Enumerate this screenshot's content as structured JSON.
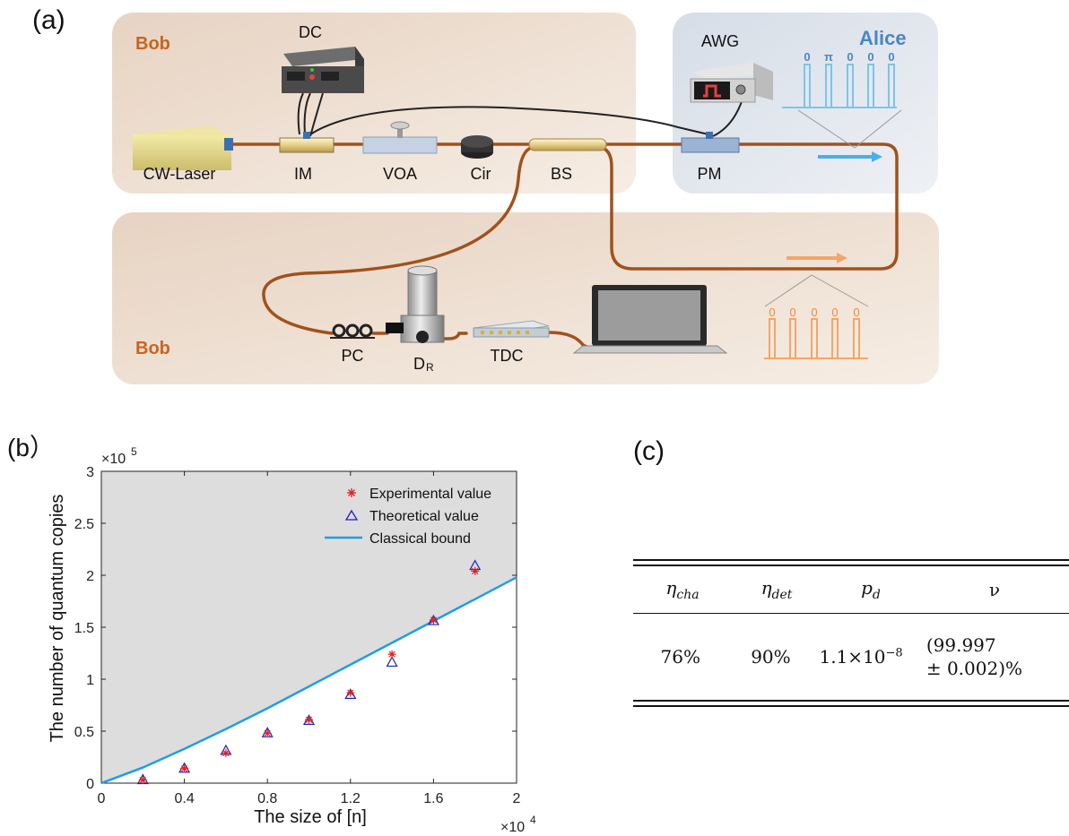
{
  "panels": {
    "a": "(a)",
    "b": "(b）",
    "c": "(c)"
  },
  "setup": {
    "regions": {
      "bob_top": "Bob",
      "bob_bottom": "Bob",
      "alice": "Alice"
    },
    "devices": {
      "dc": "DC",
      "awg": "AWG",
      "cw_laser": "CW-Laser",
      "im": "IM",
      "voa": "VOA",
      "cir": "Cir",
      "bs": "BS",
      "pm": "PM",
      "pc": "PC",
      "dr_main": "D",
      "dr_sub": "R",
      "tdc": "TDC"
    },
    "alice_pulse_labels": [
      "0",
      "π",
      "0",
      "0",
      "0"
    ],
    "bob_pulse_labels": [
      "0",
      "0",
      "0",
      "0",
      "0"
    ],
    "colors": {
      "bob_region": "#f0e2d5",
      "alice_region": "#e2e6ec",
      "bob_text": "#c8651f",
      "alice_text": "#4a86c4",
      "fiber": "#a0521c",
      "alice_pulse": "#7cc4ea",
      "bob_pulse": "#f3a66a"
    }
  },
  "chart_data": {
    "type": "scatter",
    "xlabel": "The size of [n]",
    "ylabel": "The number of quantum copies",
    "x_multiplier": "×10",
    "x_multiplier_exp": "4",
    "y_multiplier": "×10",
    "y_multiplier_exp": "5",
    "xlim": [
      0,
      2
    ],
    "ylim": [
      0,
      3
    ],
    "x_ticks": [
      "0",
      "0.4",
      "0.8",
      "1.2",
      "1.6",
      "2"
    ],
    "y_ticks": [
      "0",
      "0.5",
      "1",
      "1.5",
      "2",
      "2.5",
      "3"
    ],
    "legend_position": "top-right",
    "series": [
      {
        "name": "Experimental value",
        "marker": "asterisk",
        "color": "#e02020",
        "x": [
          0.2,
          0.4,
          0.6,
          0.8,
          1.0,
          1.2,
          1.4,
          1.6,
          1.8
        ],
        "y": [
          0.03,
          0.14,
          0.29,
          0.48,
          0.61,
          0.87,
          1.24,
          1.57,
          2.04
        ]
      },
      {
        "name": "Theoretical value",
        "marker": "triangle",
        "color": "#2020c0",
        "x": [
          0.2,
          0.4,
          0.6,
          0.8,
          1.0,
          1.2,
          1.4,
          1.6,
          1.8
        ],
        "y": [
          0.03,
          0.14,
          0.31,
          0.48,
          0.6,
          0.85,
          1.16,
          1.56,
          2.09
        ]
      },
      {
        "name": "Classical bound",
        "marker": "line",
        "color": "#1e9ee6",
        "x": [
          0,
          0.2,
          0.4,
          0.6,
          0.8,
          1.0,
          1.2,
          1.4,
          1.6,
          1.8,
          2.0
        ],
        "y": [
          0,
          0.15,
          0.33,
          0.52,
          0.72,
          0.93,
          1.14,
          1.35,
          1.56,
          1.77,
          1.98
        ]
      }
    ],
    "shade_color": "#dddddd"
  },
  "table": {
    "headers": [
      {
        "main": "η",
        "sub": "cha"
      },
      {
        "main": "η",
        "sub": "det"
      },
      {
        "main": "p",
        "sub": "d"
      },
      {
        "main": "ν",
        "sub": ""
      }
    ],
    "row": {
      "eta_cha": "76%",
      "eta_det": "90%",
      "pd_base": "1.1×10",
      "pd_exp": "−8",
      "nu_line1": "(99.997",
      "nu_line2": "± 0.002)%"
    }
  }
}
